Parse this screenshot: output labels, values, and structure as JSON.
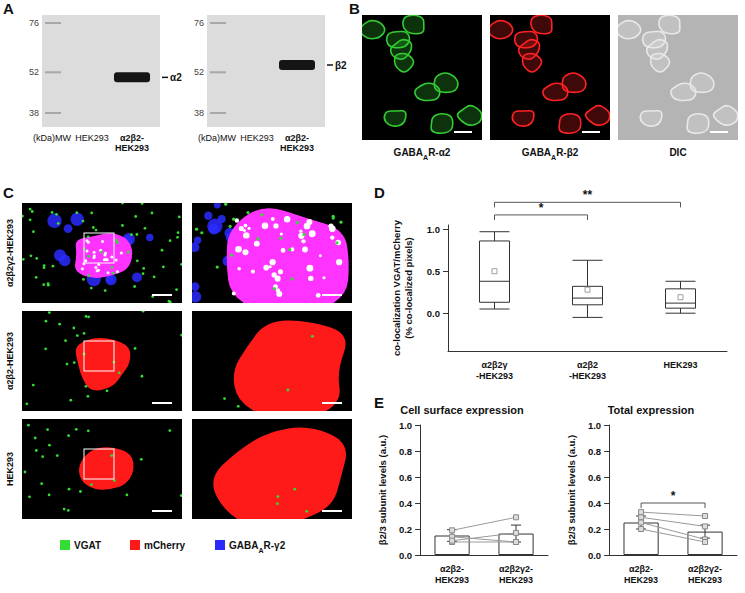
{
  "panel_labels": [
    "A",
    "B",
    "C",
    "D",
    "E"
  ],
  "panel_a": {
    "blots": [
      {
        "mw_label": "(kDa)MW",
        "markers": [
          76,
          52,
          38
        ],
        "lanes": [
          "HEK293",
          "α2β2-\nHEK293"
        ],
        "band": {
          "label": "α2",
          "kda": 50
        }
      },
      {
        "mw_label": "(kDa)MW",
        "markers": [
          76,
          52,
          38
        ],
        "lanes": [
          "HEK293",
          "α2β2-\nHEK293"
        ],
        "band": {
          "label": "β2",
          "kda": 55
        }
      }
    ]
  },
  "panel_b": {
    "images": [
      {
        "label": {
          "main": "GABA",
          "subscript": "A",
          "suffix": "R-α2"
        },
        "color": "#33cc33",
        "background": "#000000"
      },
      {
        "label": {
          "main": "GABA",
          "subscript": "A",
          "suffix": "R-β2"
        },
        "color": "#ff2222",
        "background": "#000000"
      },
      {
        "label": "DIC",
        "color": "#e8e8e8",
        "background": "#b4b4b4"
      }
    ]
  },
  "panel_c": {
    "rows": [
      {
        "label": "α2β2γ2-HEK293",
        "cell_color": "#ff33ff",
        "blue_signal": true
      },
      {
        "label": "α2β2-HEK293",
        "cell_color": "#ff1a1a",
        "blue_signal": false
      },
      {
        "label": "HEK293",
        "cell_color": "#ff1a1a",
        "blue_signal": false
      }
    ],
    "legend": [
      {
        "label": "VGAT",
        "color": "#33dd33"
      },
      {
        "label": "mCherry",
        "color": "#ff1a1a"
      },
      {
        "label": {
          "main": "GABA",
          "subscript": "A",
          "suffix": "R-γ2"
        },
        "color": "#2a2aff"
      }
    ]
  },
  "chart_data": [
    {
      "type": "boxplot",
      "ylabel": "co-localization VGAT/mCherry\n(% co-localized pixels)",
      "categories": [
        "α2β2γ\n-HEK293",
        "α2β2\n-HEK293",
        "HEK293"
      ],
      "boxes": [
        {
          "min": 0.05,
          "q1": 0.13,
          "median": 0.38,
          "q3": 0.86,
          "max": 0.97,
          "mean": 0.5
        },
        {
          "min": -0.05,
          "q1": 0.1,
          "median": 0.18,
          "q3": 0.32,
          "max": 0.63,
          "mean": 0.28
        },
        {
          "min": 0.0,
          "q1": 0.06,
          "median": 0.12,
          "q3": 0.29,
          "max": 0.38,
          "mean": 0.19
        }
      ],
      "color": "#ffffff",
      "ylim": [
        -0.45,
        1.05
      ],
      "yticks": [
        {
          "value": 0,
          "label": "0.0"
        },
        {
          "value": 0.5,
          "label": "0.5"
        },
        {
          "value": 1,
          "label": "1.0"
        }
      ],
      "annotations": [
        {
          "text": "*",
          "from": 0,
          "to": 1,
          "y": 1.17
        },
        {
          "text": "**",
          "from": 0,
          "to": 2,
          "y": 1.32
        }
      ],
      "grid": false
    },
    {
      "type": "bar",
      "title": "Cell surface expression",
      "ylabel": "β2/3 subunit levels (a.u.)",
      "categories": [
        "α2β2-\nHEK293",
        "α2β2γ2-\nHEK293"
      ],
      "values": [
        0.15,
        0.165
      ],
      "errors": [
        0.045,
        0.065
      ],
      "paired_points": [
        [
          0.19,
          0.29
        ],
        [
          0.14,
          0.1
        ],
        [
          0.1,
          0.1
        ],
        [
          0.11,
          0.17
        ]
      ],
      "color": "#ffffff",
      "ylim": [
        0,
        1
      ],
      "yticks": [
        {
          "value": 0,
          "label": "0.0"
        },
        {
          "value": 0.2,
          "label": "0.2"
        },
        {
          "value": 0.4,
          "label": "0.4"
        },
        {
          "value": 0.6,
          "label": "0.6"
        },
        {
          "value": 0.8,
          "label": "0.8"
        },
        {
          "value": 1,
          "label": "1.0"
        }
      ],
      "annotations": [],
      "grid": false
    },
    {
      "type": "bar",
      "title": "Total expression",
      "ylabel": "β2/3 subunit levels (a.u.)",
      "categories": [
        "α2β2-\nHEK293",
        "α2β2γ2-\nHEK293"
      ],
      "values": [
        0.25,
        0.18
      ],
      "errors": [
        0.05,
        0.05
      ],
      "paired_points": [
        [
          0.33,
          0.3
        ],
        [
          0.29,
          0.22
        ],
        [
          0.25,
          0.12
        ],
        [
          0.2,
          0.1
        ]
      ],
      "color": "#ffffff",
      "ylim": [
        0,
        1
      ],
      "yticks": [
        {
          "value": 0,
          "label": "0.0"
        },
        {
          "value": 0.2,
          "label": "0.2"
        },
        {
          "value": 0.4,
          "label": "0.4"
        },
        {
          "value": 0.6,
          "label": "0.6"
        },
        {
          "value": 0.8,
          "label": "0.8"
        },
        {
          "value": 1,
          "label": "1.0"
        }
      ],
      "annotations": [
        {
          "text": "*",
          "from": 0,
          "to": 1,
          "y": 0.4
        }
      ],
      "grid": false
    }
  ]
}
